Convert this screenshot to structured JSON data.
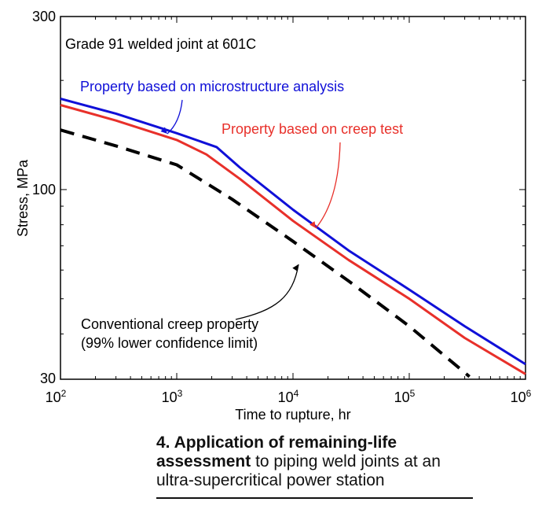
{
  "chart_data": {
    "type": "line",
    "xscale": "log",
    "yscale": "log",
    "xlim": [
      100,
      1000000
    ],
    "ylim": [
      30,
      300
    ],
    "xlabel": "Time to rupture, hr",
    "ylabel": "Stress, MPa",
    "xticks": [
      {
        "base": "10",
        "exp": "2"
      },
      {
        "base": "10",
        "exp": "3"
      },
      {
        "base": "10",
        "exp": "4"
      },
      {
        "base": "10",
        "exp": "5"
      },
      {
        "base": "10",
        "exp": "6"
      }
    ],
    "yticks": [
      "30",
      "100",
      "300"
    ],
    "annotation_title": "Grade 91 welded joint at 601C",
    "series": [
      {
        "name": "Property based on microstructure analysis",
        "color": "#1010d8",
        "style": "solid",
        "x": [
          100,
          300,
          1000,
          2200,
          3500,
          10000,
          30000,
          100000,
          300000,
          1000000
        ],
        "y": [
          178,
          162,
          143,
          131,
          115,
          88,
          68,
          53,
          42,
          33
        ]
      },
      {
        "name": "Property based on creep test",
        "color": "#e8302a",
        "style": "solid",
        "x": [
          100,
          300,
          1000,
          1800,
          3500,
          10000,
          30000,
          100000,
          300000,
          1000000
        ],
        "y": [
          171,
          155,
          137,
          125,
          107,
          82,
          64,
          50,
          39,
          31
        ]
      },
      {
        "name": "Conventional creep property (99% lower confidence limit)",
        "color": "#000000",
        "style": "dashed",
        "x": [
          100,
          300,
          1000,
          3000,
          10000,
          30000,
          100000,
          330000
        ],
        "y": [
          146,
          132,
          117,
          94,
          72,
          56,
          42,
          30.5
        ]
      }
    ],
    "annotations": [
      {
        "lines": [
          "Property based on microstructure analysis"
        ],
        "color": "#1010d8"
      },
      {
        "lines": [
          "Property based on creep test"
        ],
        "color": "#e8302a"
      },
      {
        "lines": [
          "Conventional creep property",
          "(99% lower confidence limit)"
        ],
        "color": "#000000"
      }
    ]
  },
  "caption": {
    "bold": "4. Application of remaining-life assessment",
    "rest": " to piping weld joints at an ultra-supercritical power station"
  }
}
